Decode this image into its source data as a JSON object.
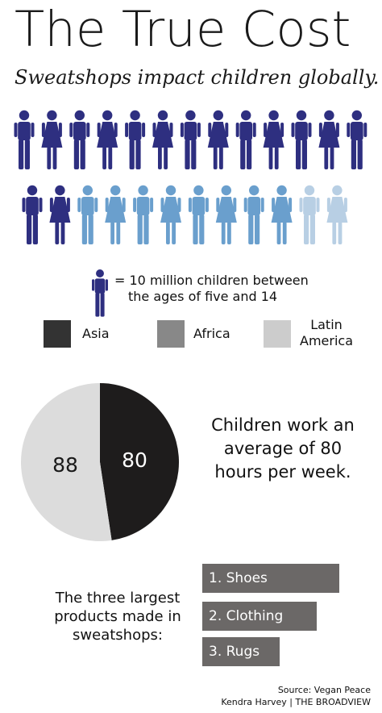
{
  "header": {
    "title": "The True Cost",
    "subtitle": "Sweatshops impact children globally."
  },
  "colors": {
    "asia_figure": "#2e2f80",
    "africa_figure": "#6a9fcd",
    "latin_america_figure": "#b8cfe4",
    "asia_swatch": "#333333",
    "africa_swatch": "#888888",
    "latin_america_swatch": "#cccccc",
    "pie_dark": "#1e1c1c",
    "pie_light": "#dcdcdc",
    "bar": "#6b6867"
  },
  "figures": {
    "icon": "child-figure-icon",
    "key_line1": "= 10 million children between",
    "key_line2": "the ages of five and 14",
    "rows": [
      [
        "asia",
        "asia",
        "asia",
        "asia",
        "asia",
        "asia",
        "asia",
        "asia",
        "asia",
        "asia",
        "asia",
        "asia",
        "asia"
      ],
      [
        "asia",
        "asia",
        "africa",
        "africa",
        "africa",
        "africa",
        "africa",
        "africa",
        "africa",
        "africa",
        "latin_america",
        "latin_america"
      ]
    ]
  },
  "legend": [
    {
      "label": "Asia",
      "swatch": "#333333"
    },
    {
      "label": "Africa",
      "swatch": "#888888"
    },
    {
      "label_lines": [
        "Latin",
        "America"
      ],
      "swatch": "#cccccc"
    }
  ],
  "chart_data": [
    {
      "type": "pie",
      "values": [
        80,
        88
      ],
      "labels": [
        "80",
        "88"
      ],
      "colors": [
        "#1e1c1c",
        "#dcdcdc"
      ]
    },
    {
      "type": "bar",
      "orientation": "horizontal",
      "categories": [
        "1. Shoes",
        "2. Clothing",
        "3. Rugs"
      ],
      "values": [
        3,
        2.5,
        1.7
      ]
    }
  ],
  "stat": {
    "lines": [
      "Children work an",
      "average of 80",
      "hours per week."
    ]
  },
  "products": {
    "label_lines": [
      "The three largest",
      "products made in",
      "sweatshops:"
    ]
  },
  "footer": {
    "source": "Source: Vegan Peace",
    "credit": "Kendra Harvey | THE BROADVIEW"
  }
}
